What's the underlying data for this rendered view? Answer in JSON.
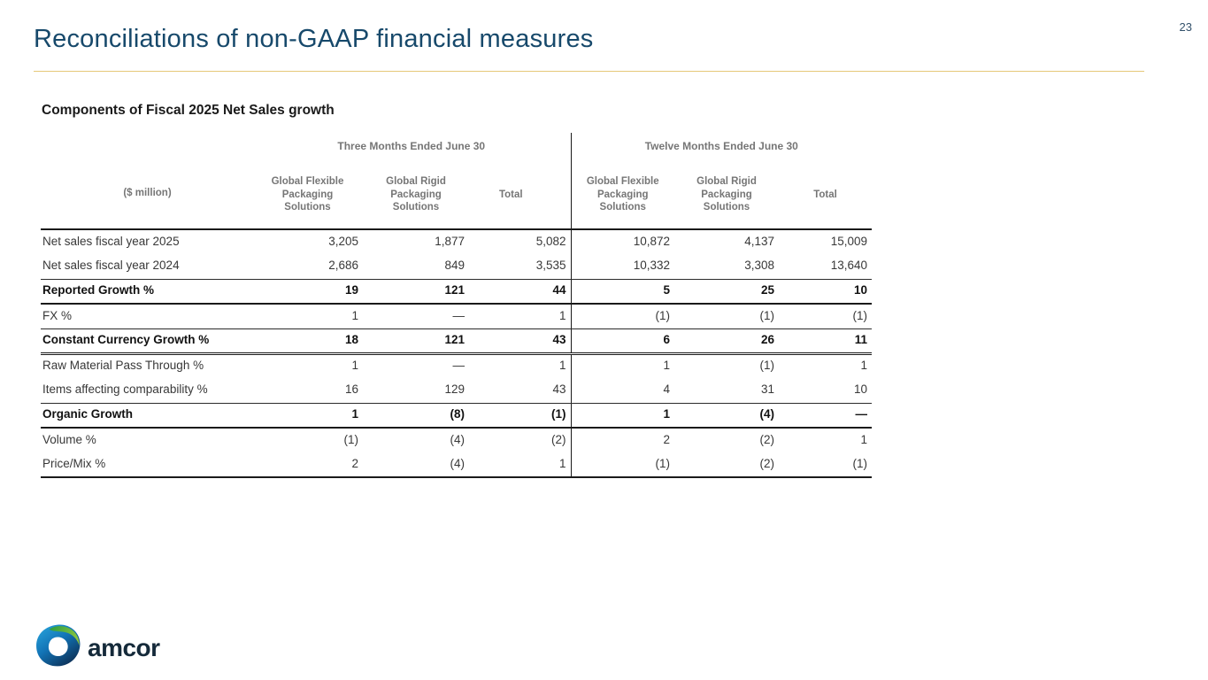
{
  "page": {
    "number": "23"
  },
  "header": {
    "title": "Reconciliations of non-GAAP financial measures",
    "title_color": "#17496b",
    "rule_color": "#e5c878"
  },
  "table": {
    "title": "Components of Fiscal 2025 Net Sales growth",
    "unit_label": "($ million)",
    "group_headers": [
      "Three Months Ended June 30",
      "Twelve Months Ended June 30"
    ],
    "column_headers": [
      "Global Flexible Packaging Solutions",
      "Global Rigid Packaging Solutions",
      "Total",
      "Global Flexible Packaging Solutions",
      "Global Rigid Packaging Solutions",
      "Total"
    ],
    "rows": [
      {
        "label": "Net sales fiscal year 2025",
        "bold": false,
        "values": [
          "3,205",
          "1,877",
          "5,082",
          "10,872",
          "4,137",
          "15,009"
        ]
      },
      {
        "label": "Net sales fiscal year 2024",
        "bold": false,
        "values": [
          "2,686",
          "849",
          "3,535",
          "10,332",
          "3,308",
          "13,640"
        ]
      },
      {
        "label": "Reported Growth %",
        "bold": true,
        "values": [
          "19",
          "121",
          "44",
          "5",
          "25",
          "10"
        ]
      },
      {
        "label": "FX %",
        "bold": false,
        "values": [
          "1",
          "—",
          "1",
          "(1)",
          "(1)",
          "(1)"
        ]
      },
      {
        "label": "Constant Currency Growth %",
        "bold": true,
        "values": [
          "18",
          "121",
          "43",
          "6",
          "26",
          "11"
        ]
      },
      {
        "label": "Raw Material Pass Through %",
        "bold": false,
        "values": [
          "1",
          "—",
          "1",
          "1",
          "(1)",
          "1"
        ]
      },
      {
        "label": "Items affecting comparability %",
        "bold": false,
        "values": [
          "16",
          "129",
          "43",
          "4",
          "31",
          "10"
        ]
      },
      {
        "label": "Organic Growth",
        "bold": true,
        "values": [
          "1",
          "(8)",
          "(1)",
          "1",
          "(4)",
          "—"
        ]
      },
      {
        "label": "Volume %",
        "bold": false,
        "values": [
          "(1)",
          "(4)",
          "(2)",
          "2",
          "(2)",
          "1"
        ]
      },
      {
        "label": "Price/Mix %",
        "bold": false,
        "values": [
          "2",
          "(4)",
          "1",
          "(1)",
          "(2)",
          "(1)"
        ]
      }
    ]
  },
  "footer": {
    "logo_text": "amcor"
  }
}
